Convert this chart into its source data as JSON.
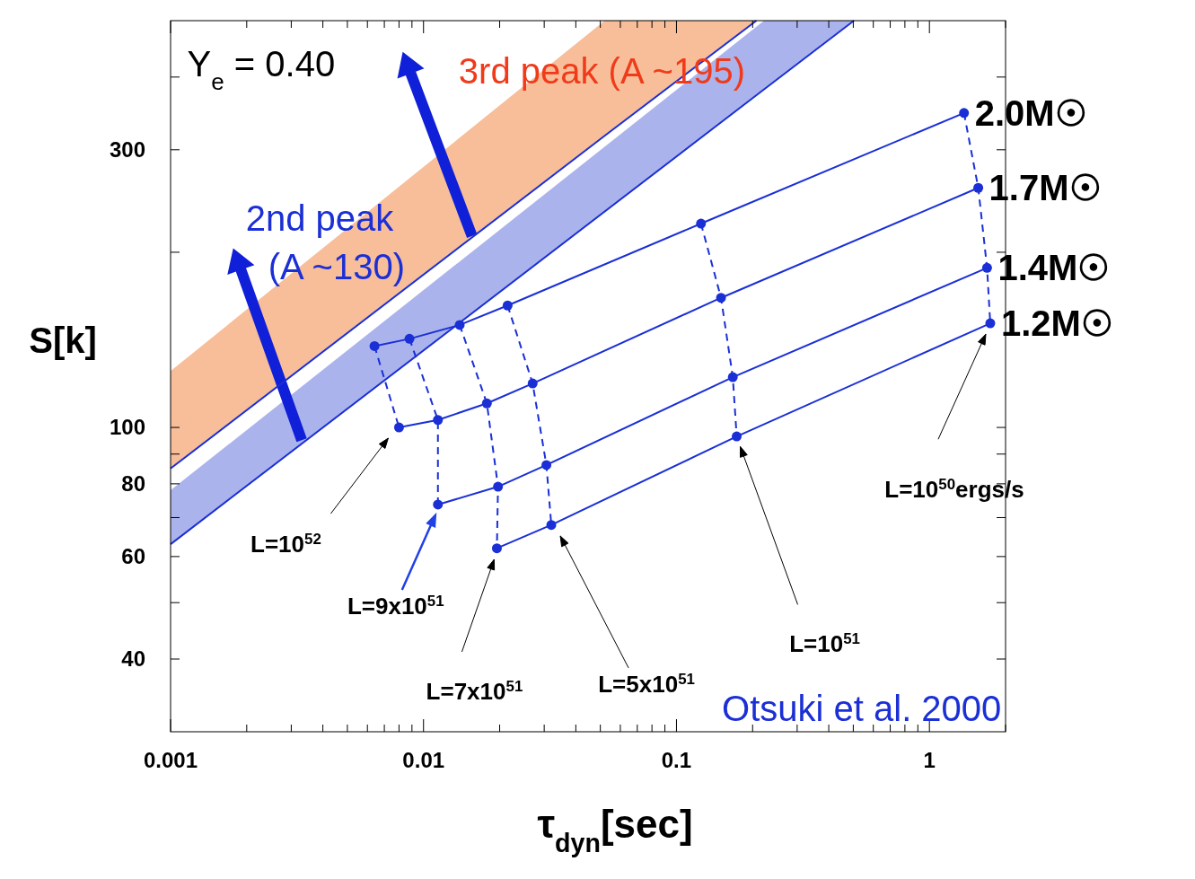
{
  "chart_data": {
    "type": "line",
    "xlabel": "τ$_{dyn}$[sec]",
    "ylabel": "S[k]",
    "log": "xy",
    "xlim": [
      0.001,
      2
    ],
    "ylim": [
      30,
      500
    ],
    "xticks": [
      0.001,
      {
        "value": 0.002,
        "label": null
      },
      {
        "value": 0.003,
        "label": null
      },
      {
        "value": 0.004,
        "label": null
      },
      {
        "value": 0.005,
        "label": null
      },
      {
        "value": 0.006,
        "label": null
      },
      {
        "value": 0.007,
        "label": null
      },
      {
        "value": 0.008,
        "label": null
      },
      {
        "value": 0.009,
        "label": null
      },
      0.01,
      {
        "value": 0.02,
        "label": null
      },
      {
        "value": 0.03,
        "label": null
      },
      {
        "value": 0.04,
        "label": null
      },
      {
        "value": 0.05,
        "label": null
      },
      {
        "value": 0.06,
        "label": null
      },
      {
        "value": 0.07,
        "label": null
      },
      {
        "value": 0.08,
        "label": null
      },
      {
        "value": 0.09,
        "label": null
      },
      0.1,
      {
        "value": 0.2,
        "label": null
      },
      {
        "value": 0.3,
        "label": null
      },
      {
        "value": 0.4,
        "label": null
      },
      {
        "value": 0.5,
        "label": null
      },
      {
        "value": 0.6,
        "label": null
      },
      {
        "value": 0.7,
        "label": null
      },
      {
        "value": 0.8,
        "label": null
      },
      {
        "value": 0.9,
        "label": null
      },
      1,
      {
        "value": 2,
        "label": null
      }
    ],
    "yticks": [
      40,
      {
        "value": 50,
        "label": null
      },
      60,
      {
        "value": 70,
        "label": null
      },
      80,
      {
        "value": 90,
        "label": null
      },
      100,
      {
        "value": 200,
        "label": null
      },
      300,
      {
        "value": 400,
        "label": null
      }
    ],
    "series": [
      {
        "color": "#1a2fd6",
        "marker": "none",
        "x": [
          0.001,
          0.052,
          0.207
        ],
        "values": [
          85,
          317,
          500
        ],
        "lower": [
          85,
          317,
          500
        ],
        "upper": [
          125,
          500,
          500
        ]
      },
      {
        "color": "#1a2fd6",
        "marker": "none",
        "x": [
          0.001,
          0.222,
          0.503
        ],
        "values": [
          63,
          381,
          500
        ],
        "lower": [
          63,
          381,
          500
        ],
        "upper": [
          78,
          500,
          500
        ]
      },
      {
        "name": "2.0M☉",
        "color": "#1a2fd6",
        "marker": "circle",
        "x": [
          0.0064,
          0.0088,
          0.0139,
          0.0215,
          0.125,
          1.37
        ],
        "values": [
          138,
          142,
          150,
          162,
          224,
          347
        ]
      },
      {
        "name": "1.7M☉",
        "color": "#1a2fd6",
        "marker": "circle",
        "x": [
          0.008,
          0.0114,
          0.0178,
          0.027,
          0.15,
          1.56
        ],
        "values": [
          100,
          103,
          110,
          119,
          167,
          258
        ]
      },
      {
        "name": "1.4M☉",
        "color": "#1a2fd6",
        "marker": "circle",
        "x": [
          0.0114,
          0.0197,
          0.0306,
          0.167,
          1.69
        ],
        "values": [
          73.7,
          79.1,
          86.2,
          122,
          188
        ]
      },
      {
        "name": "1.2M☉",
        "color": "#1a2fd6",
        "marker": "circle",
        "x": [
          0.0195,
          0.032,
          0.173,
          1.74
        ],
        "values": [
          62,
          68,
          96.5,
          151
        ]
      },
      {
        "color": "#1a2fd6",
        "line_style": "dashed",
        "marker": "none",
        "x": [
          0.0064,
          0.008,
          null,
          0.0088,
          0.0114,
          0.0114,
          null,
          0.0139,
          0.0178,
          0.0197,
          0.0195,
          null,
          0.0215,
          0.027,
          0.0306,
          0.032,
          null,
          0.125,
          0.15,
          0.167,
          0.173,
          null,
          1.37,
          1.56,
          1.69,
          1.74
        ],
        "values": [
          138,
          100,
          null,
          142,
          103,
          73.7,
          null,
          150,
          110,
          79.1,
          62,
          null,
          162,
          119,
          86.2,
          68,
          null,
          224,
          167,
          122,
          96.5,
          null,
          347,
          258,
          188,
          151
        ]
      }
    ],
    "annotations": [
      "Y$_{e}$ = 0.40",
      "3rd peak (A ~195)",
      "2nd peak (A ~130)",
      "Otsuki et al. 2000",
      "L=10$^{52}$",
      "L=9x10$^{51}$",
      "L=7x10$^{51}$",
      "L=5x10$^{51}$",
      "L=10$^{51}$",
      "L=10$^{50}$ergs/s"
    ]
  }
}
